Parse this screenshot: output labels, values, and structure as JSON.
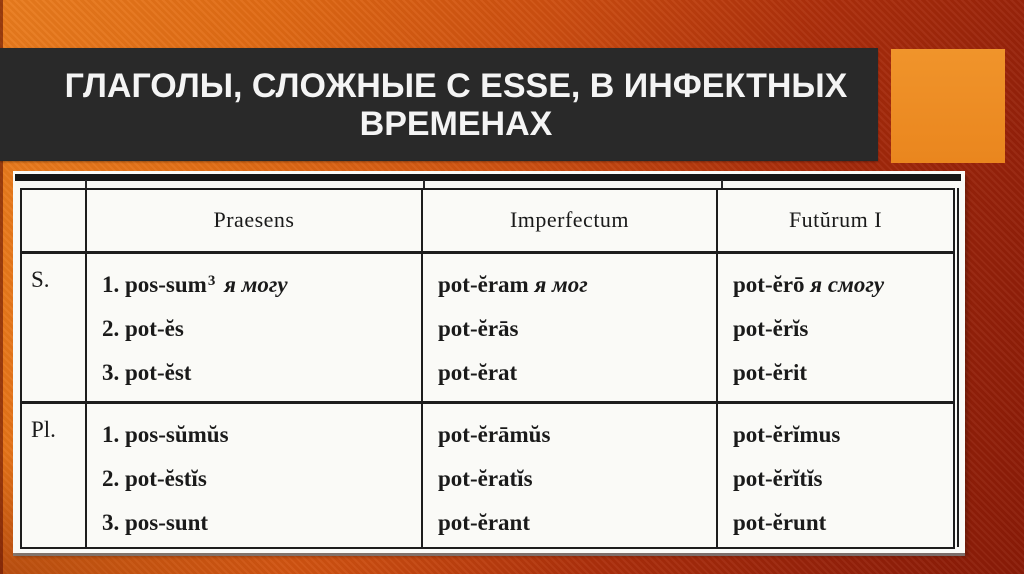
{
  "slide": {
    "title_line1": "ГЛАГОЛЫ, СЛОЖНЫЕ С ESSE, В ИНФЕКТНЫХ",
    "title_line2": "ВРЕМЕНАХ"
  },
  "colors": {
    "bg_orange": "#E97C1E",
    "bg_red": "#8A1B07",
    "title_band": "#292929",
    "title_text": "#F4F4F4",
    "accent_square": "#EA861E",
    "scan_paper": "#FAFAF7",
    "ink": "#1A1A1A"
  },
  "table": {
    "col_headers": [
      "Praesens",
      "Imperfectum",
      "Futŭrum I"
    ],
    "rows": [
      {
        "label": "S.",
        "cells": [
          {
            "lines": [
              [
                {
                  "t": "1. pos-sum"
                },
                {
                  "t": "3",
                  "sup": true
                },
                {
                  "t": " я могу",
                  "i": true
                }
              ],
              [
                {
                  "t": "2. pot-ĕs"
                }
              ],
              [
                {
                  "t": "3. pot-ĕst"
                }
              ]
            ]
          },
          {
            "lines": [
              [
                {
                  "t": "pot-ĕram "
                },
                {
                  "t": "я мог",
                  "i": true
                }
              ],
              [
                {
                  "t": "pot-ĕrās"
                }
              ],
              [
                {
                  "t": "pot-ĕrat"
                }
              ]
            ]
          },
          {
            "lines": [
              [
                {
                  "t": "pot-ĕrō "
                },
                {
                  "t": "я смогу",
                  "i": true
                }
              ],
              [
                {
                  "t": "pot-ĕrĭs"
                }
              ],
              [
                {
                  "t": "pot-ĕrit"
                }
              ]
            ]
          }
        ]
      },
      {
        "label": "Pl.",
        "cells": [
          {
            "lines": [
              [
                {
                  "t": "1. pos-sŭmŭs"
                }
              ],
              [
                {
                  "t": "2. pot-ĕstĭs"
                }
              ],
              [
                {
                  "t": "3. pos-sunt"
                }
              ]
            ]
          },
          {
            "lines": [
              [
                {
                  "t": "pot-ĕrāmŭs"
                }
              ],
              [
                {
                  "t": "pot-ĕratĭs"
                }
              ],
              [
                {
                  "t": "pot-ĕrant"
                }
              ]
            ]
          },
          {
            "lines": [
              [
                {
                  "t": "pot-ĕrĭmus"
                }
              ],
              [
                {
                  "t": "pot-ĕrĭtĭs"
                }
              ],
              [
                {
                  "t": "pot-ĕrunt"
                }
              ]
            ]
          }
        ]
      }
    ]
  }
}
